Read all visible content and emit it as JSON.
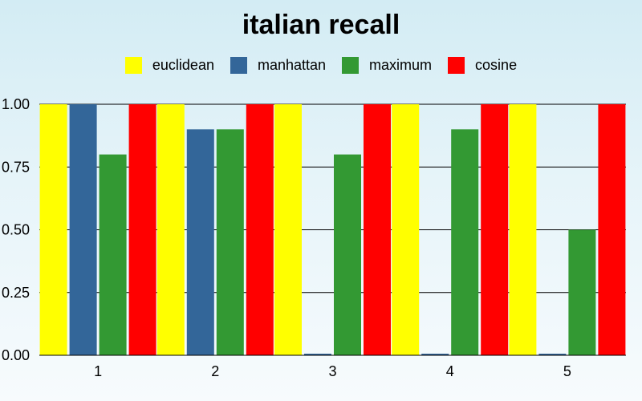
{
  "chart_data": {
    "type": "bar",
    "title": "italian recall",
    "categories": [
      "1",
      "2",
      "3",
      "4",
      "5"
    ],
    "series": [
      {
        "name": "euclidean",
        "color": "#ffff00",
        "values": [
          1.0,
          1.0,
          1.0,
          1.0,
          1.0
        ]
      },
      {
        "name": "manhattan",
        "color": "#336699",
        "values": [
          1.0,
          0.9,
          0.0,
          0.0,
          0.0
        ]
      },
      {
        "name": "maximum",
        "color": "#339933",
        "values": [
          0.8,
          0.9,
          0.8,
          0.9,
          0.5
        ]
      },
      {
        "name": "cosine",
        "color": "#ff0000",
        "values": [
          1.0,
          1.0,
          1.0,
          1.0,
          1.0
        ]
      }
    ],
    "yticks": [
      "0.00",
      "0.25",
      "0.50",
      "0.75",
      "1.00"
    ],
    "ylim": [
      0,
      1
    ],
    "xlabel": "",
    "ylabel": "",
    "grid": true,
    "legend_position": "top-center"
  }
}
